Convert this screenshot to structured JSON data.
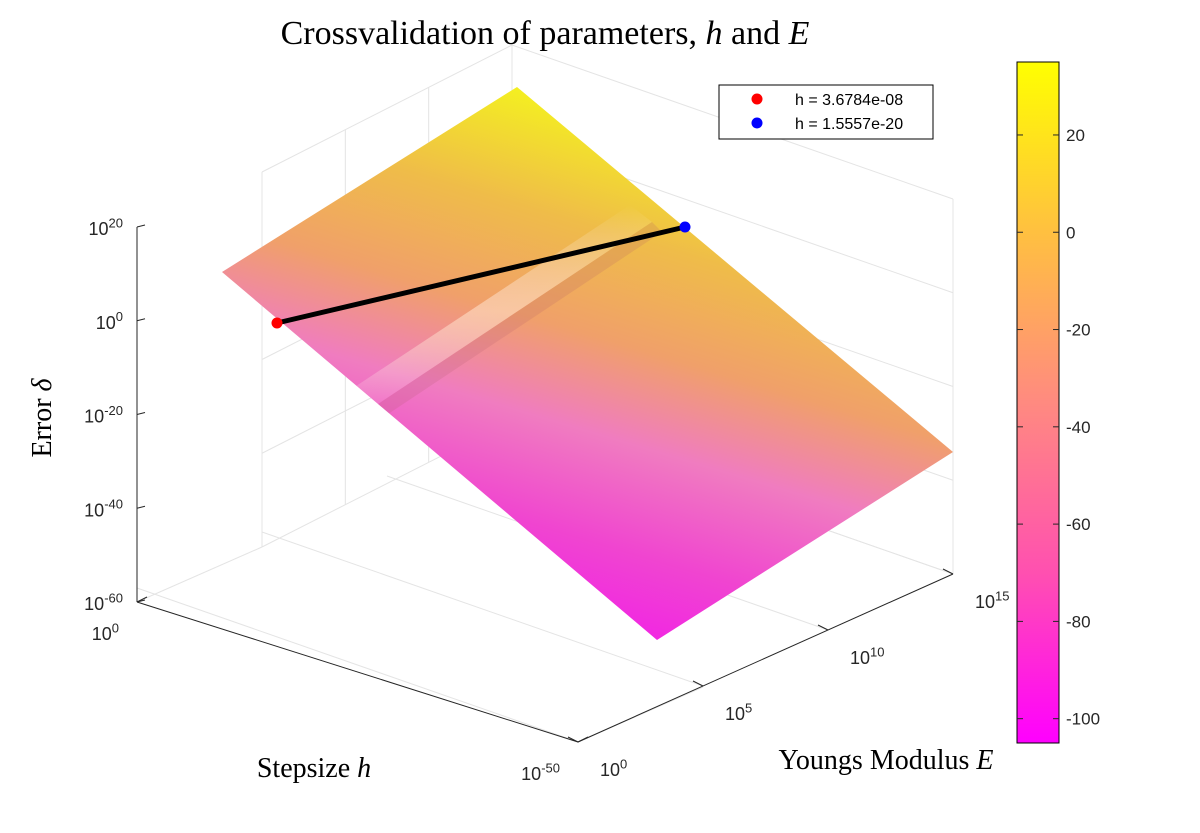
{
  "chart_data": {
    "type": "surface",
    "title": "Crossvalidation of parameters, h and E",
    "title_parts": {
      "prefix": "Crossvalidation of parameters, ",
      "var1": "h",
      "mid": " and ",
      "var2": "E"
    },
    "xlabel": "Youngs Modulus E",
    "xlabel_parts": {
      "text": "Youngs Modulus ",
      "var": "E"
    },
    "ylabel": "Stepsize h",
    "ylabel_parts": {
      "text": "Stepsize ",
      "var": "h"
    },
    "zlabel": "Error δ",
    "zlabel_parts": {
      "text": "Error ",
      "var": "δ"
    },
    "x_scale": "log",
    "y_scale": "log",
    "z_scale": "log",
    "xlim": [
      1,
      1000000000000000.0
    ],
    "ylim": [
      1e-50,
      1
    ],
    "zlim": [
      1e-60,
      1e+20
    ],
    "x_ticks": [
      {
        "base": "10",
        "exp": "0"
      },
      {
        "base": "10",
        "exp": "5"
      },
      {
        "base": "10",
        "exp": "10"
      },
      {
        "base": "10",
        "exp": "15"
      }
    ],
    "y_ticks": [
      {
        "base": "10",
        "exp": "0"
      },
      {
        "base": "10",
        "exp": "-50"
      }
    ],
    "z_ticks": [
      {
        "base": "10",
        "exp": "20"
      },
      {
        "base": "10",
        "exp": "0"
      },
      {
        "base": "10",
        "exp": "-20"
      },
      {
        "base": "10",
        "exp": "-40"
      },
      {
        "base": "10",
        "exp": "-60"
      }
    ],
    "grid": true,
    "colormap": "spring",
    "colorbar": {
      "range": [
        -105,
        35
      ],
      "ticks": [
        20,
        0,
        -20,
        -40,
        -60,
        -80,
        -100
      ],
      "tick_labels": [
        "20",
        "0",
        "-20",
        "-40",
        "-60",
        "-80",
        "-100"
      ]
    },
    "series": [
      {
        "name": "h = 3.6784e-08",
        "color": "#ff0000",
        "marker": "point"
      },
      {
        "name": "h = 1.5557e-20",
        "color": "#0000ff",
        "marker": "point"
      }
    ],
    "line": {
      "color": "#000000",
      "style": "solid"
    },
    "legend_position": "top-right"
  }
}
